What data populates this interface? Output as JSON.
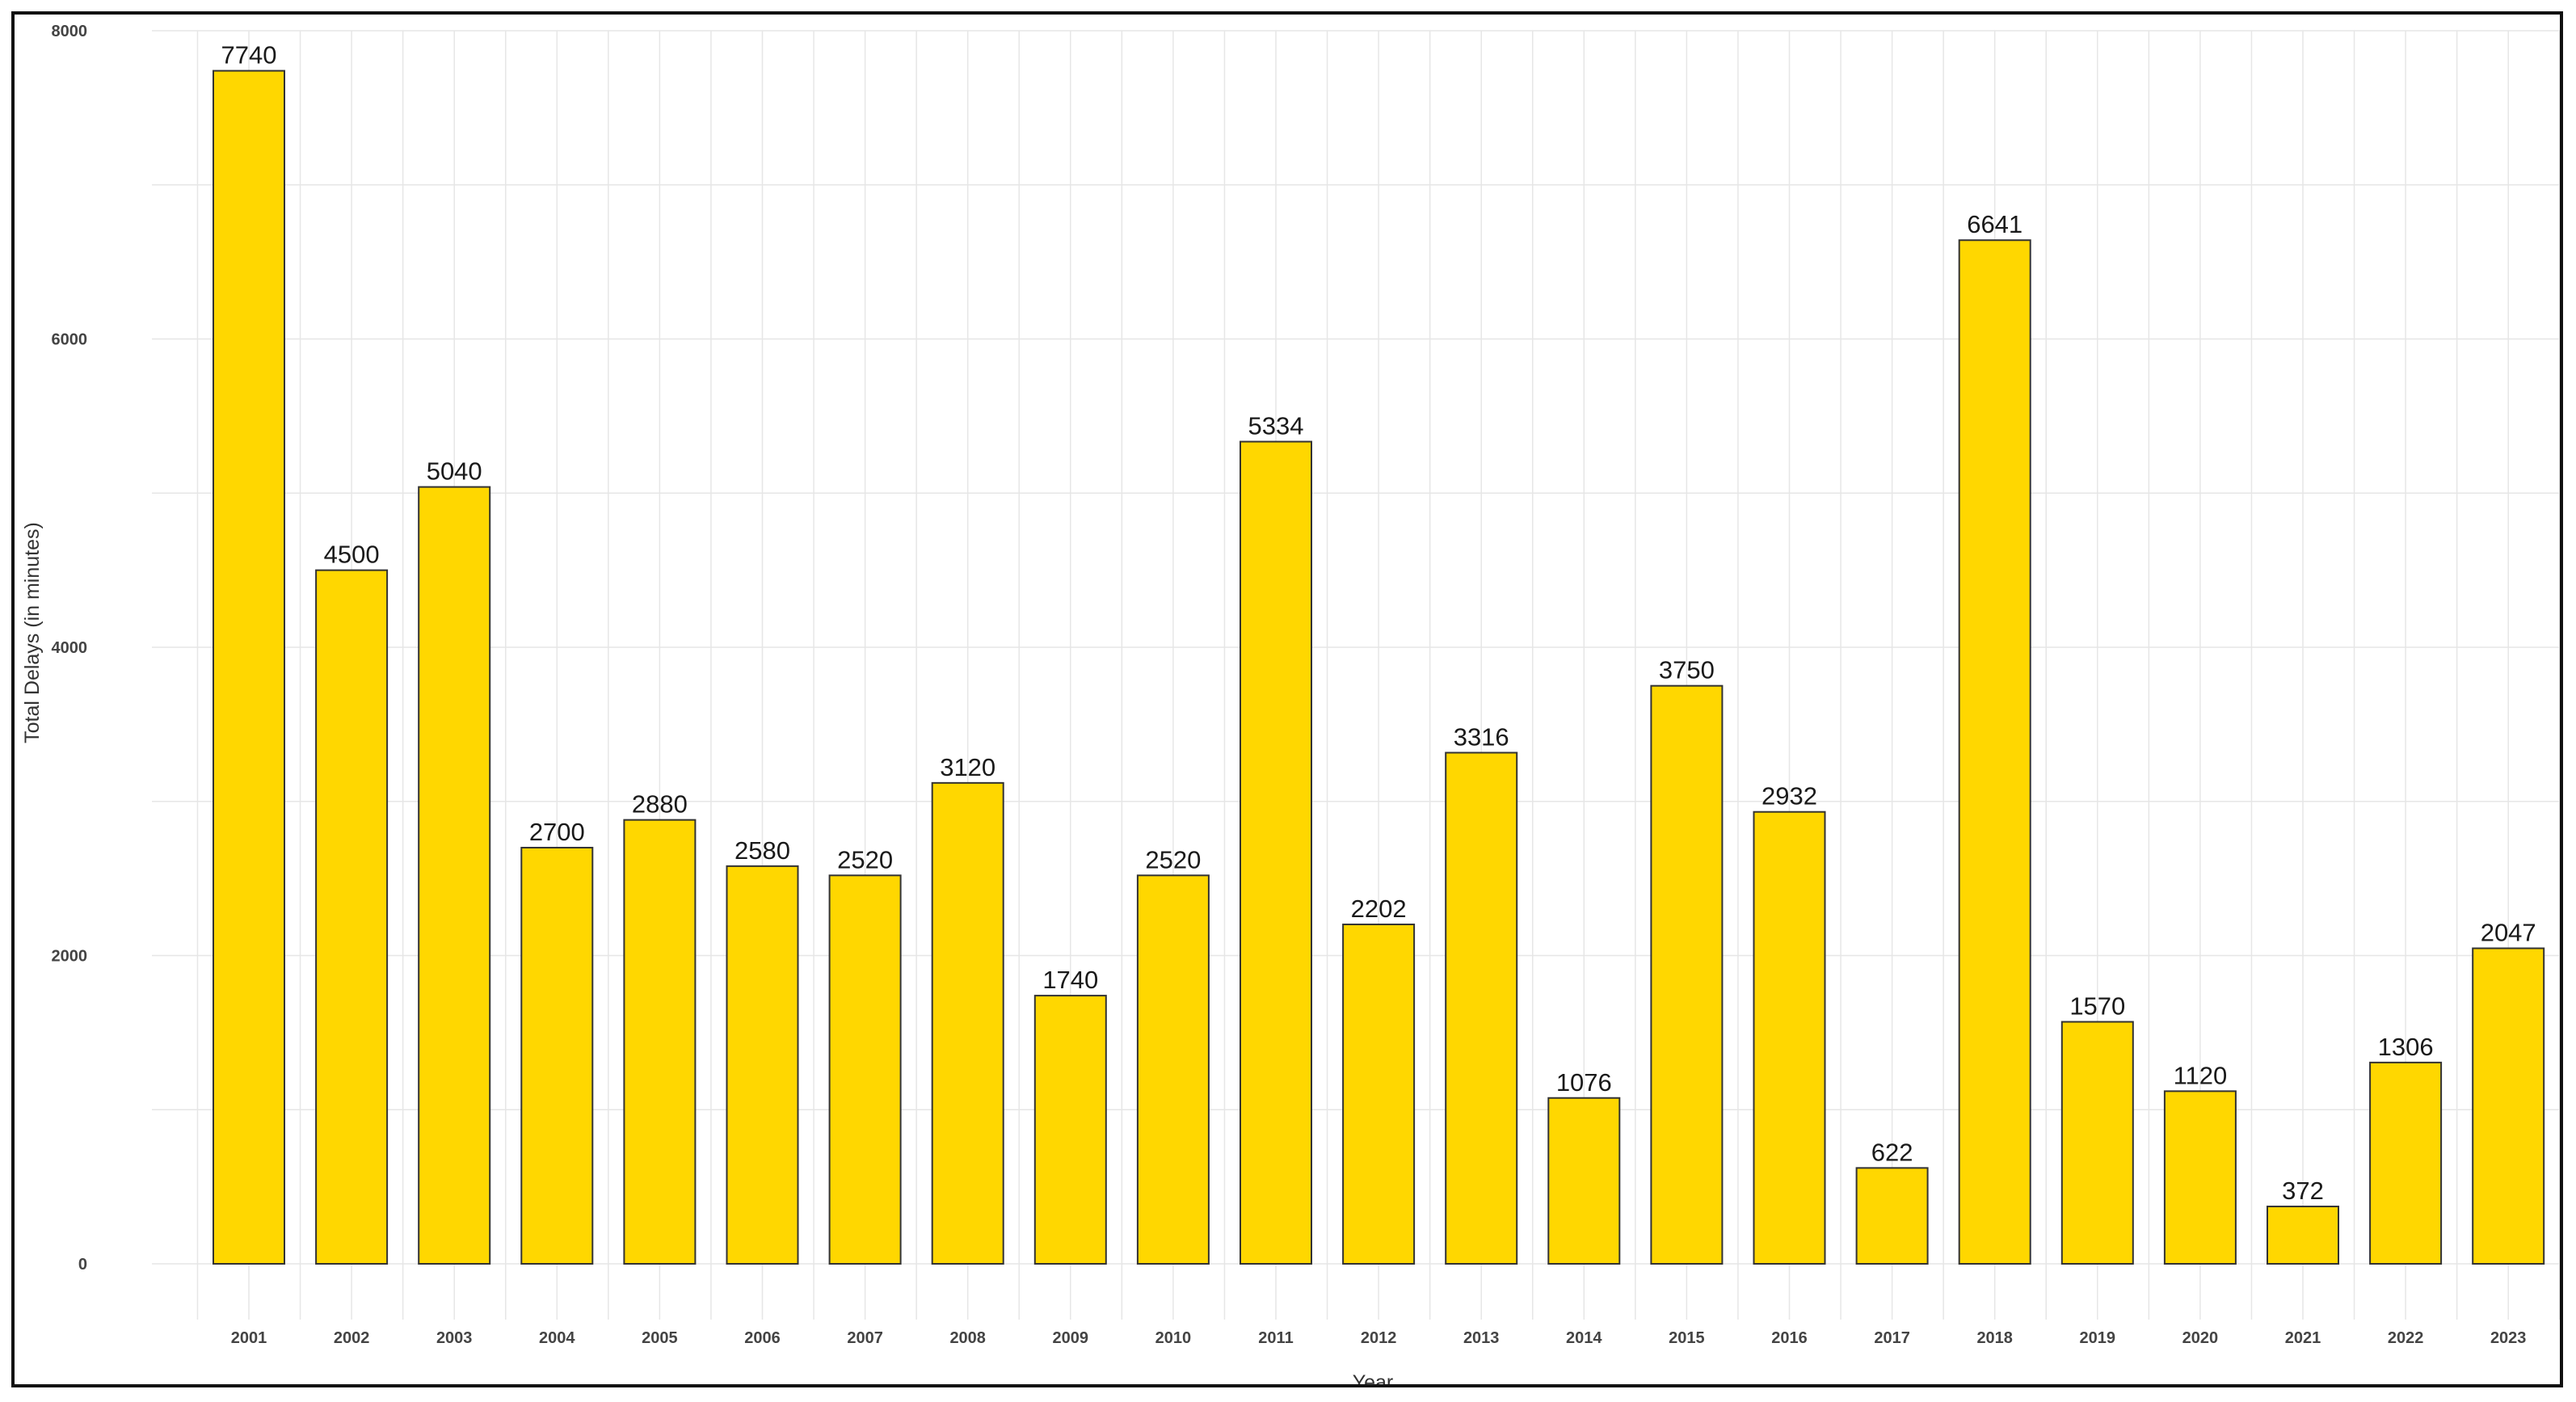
{
  "chart_data": {
    "type": "bar",
    "title": "",
    "xlabel": "Year",
    "ylabel": "Total Delays (in minutes)",
    "ylim": [
      0,
      8000
    ],
    "yticks": [
      0,
      2000,
      4000,
      6000,
      8000
    ],
    "grid": true,
    "legend": "none",
    "bar_color": "#FFD700",
    "bar_border_color": "#333333",
    "categories": [
      "2001",
      "2002",
      "2003",
      "2004",
      "2005",
      "2006",
      "2007",
      "2008",
      "2009",
      "2010",
      "2011",
      "2012",
      "2013",
      "2014",
      "2015",
      "2016",
      "2017",
      "2018",
      "2019",
      "2020",
      "2021",
      "2022",
      "2023"
    ],
    "values": [
      7740,
      4500,
      5040,
      2700,
      2880,
      2580,
      2520,
      3120,
      1740,
      2520,
      5334,
      2202,
      3316,
      1076,
      3750,
      2932,
      622,
      6641,
      1570,
      1120,
      372,
      1306,
      2047
    ]
  }
}
